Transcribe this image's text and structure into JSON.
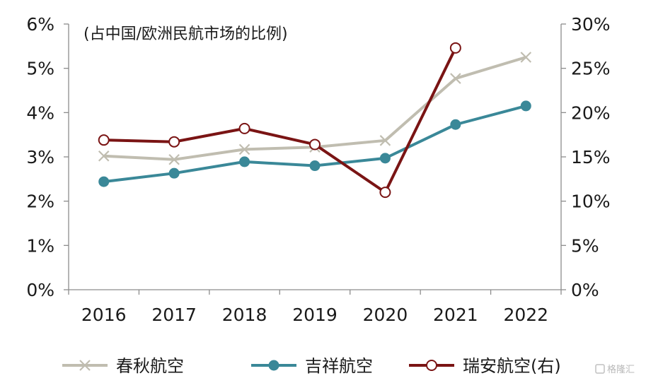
{
  "chart_data": {
    "type": "line",
    "subtitle": "(占中国/欧洲民航市场的比例)",
    "categories": [
      "2016",
      "2017",
      "2018",
      "2019",
      "2020",
      "2021",
      "2022"
    ],
    "y_left": {
      "ticks": [
        "0%",
        "1%",
        "2%",
        "3%",
        "4%",
        "5%",
        "6%"
      ],
      "ylim": [
        0,
        6
      ]
    },
    "y_right": {
      "ticks": [
        "0%",
        "5%",
        "10%",
        "15%",
        "20%",
        "25%",
        "30%"
      ],
      "ylim": [
        0,
        30
      ]
    },
    "series": [
      {
        "name": "春秋航空",
        "axis": "left",
        "values": [
          3.02,
          2.94,
          3.17,
          3.22,
          3.37,
          4.77,
          5.25
        ],
        "color": "#c0bdb0",
        "marker": "x"
      },
      {
        "name": "吉祥航空",
        "axis": "left",
        "values": [
          2.44,
          2.63,
          2.89,
          2.8,
          2.97,
          3.73,
          4.15
        ],
        "color": "#3a8898",
        "marker": "filled-circle"
      },
      {
        "name": "瑞安航空(右)",
        "axis": "right",
        "values": [
          16.9,
          16.7,
          18.2,
          16.4,
          11.0,
          27.3,
          null
        ],
        "color": "#7a1414",
        "marker": "open-circle"
      }
    ],
    "grid": false,
    "legend_position": "bottom"
  },
  "watermark": "格隆汇"
}
